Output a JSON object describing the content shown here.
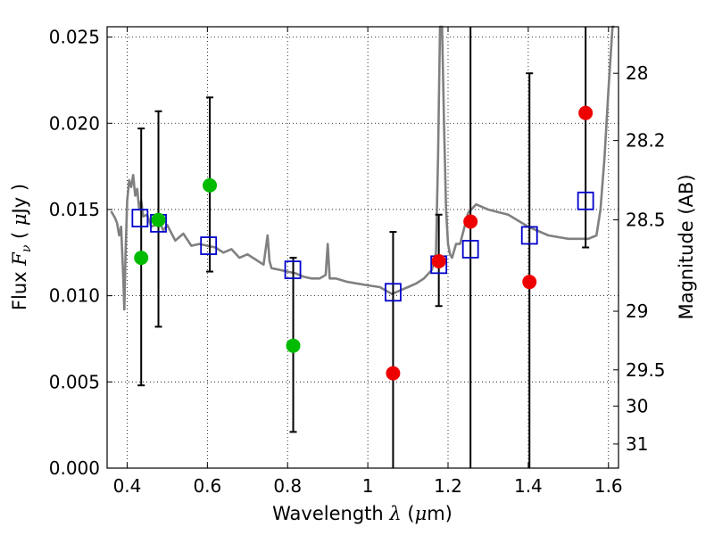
{
  "chart_data": {
    "type": "scatter",
    "xlabel": "Wavelength  λ (μm)",
    "ylabel": "Flux  F_ν  ( μJy )",
    "ylabel_parts": [
      "Flux  ",
      "F",
      "ν",
      "  ( ",
      "μ",
      "Jy )"
    ],
    "xlabel_parts": [
      "Wavelength  ",
      "λ",
      " (",
      "μ",
      "m)"
    ],
    "y2label": "Magnitude (AB)",
    "xlim": [
      0.35,
      1.625
    ],
    "ylim": [
      0.0,
      0.0256
    ],
    "x_ticks": [
      0.4,
      0.6,
      0.8,
      1.0,
      1.2,
      1.4,
      1.6
    ],
    "x_tick_labels": [
      "0.4",
      "0.6",
      "0.8",
      "1",
      "1.2",
      "1.4",
      "1.6"
    ],
    "y_ticks": [
      0.0,
      0.005,
      0.01,
      0.015,
      0.02,
      0.025
    ],
    "y_tick_labels": [
      "0.000",
      "0.005",
      "0.010",
      "0.015",
      "0.020",
      "0.025"
    ],
    "mag_ticks": [
      {
        "label": "28",
        "flux": 0.0229
      },
      {
        "label": "28.2",
        "flux": 0.019
      },
      {
        "label": "28.5",
        "flux": 0.0144
      },
      {
        "label": "29",
        "flux": 0.0091
      },
      {
        "label": "29.5",
        "flux": 0.0057
      },
      {
        "label": "30",
        "flux": 0.0036
      },
      {
        "label": "31",
        "flux": 0.0014
      }
    ],
    "grid": true,
    "colors": {
      "sed": "#808080",
      "green": "#00bb00",
      "red": "#ee0000",
      "model": "#0000cc",
      "errorbar": "#000000"
    },
    "series": [
      {
        "name": "SED model",
        "style": "line",
        "x": [
          0.36,
          0.37,
          0.375,
          0.38,
          0.385,
          0.39,
          0.393,
          0.396,
          0.4,
          0.405,
          0.41,
          0.415,
          0.42,
          0.425,
          0.43,
          0.435,
          0.44,
          0.45,
          0.46,
          0.47,
          0.48,
          0.49,
          0.5,
          0.52,
          0.54,
          0.56,
          0.58,
          0.6,
          0.62,
          0.64,
          0.66,
          0.68,
          0.7,
          0.72,
          0.74,
          0.75,
          0.755,
          0.76,
          0.78,
          0.8,
          0.82,
          0.84,
          0.86,
          0.88,
          0.895,
          0.9,
          0.905,
          0.92,
          0.95,
          1.0,
          1.03,
          1.06,
          1.08,
          1.1,
          1.12,
          1.14,
          1.16,
          1.17,
          1.175,
          1.18,
          1.185,
          1.19,
          1.195,
          1.2,
          1.205,
          1.21,
          1.22,
          1.23,
          1.25,
          1.27,
          1.3,
          1.35,
          1.4,
          1.45,
          1.5,
          1.55,
          1.57,
          1.58,
          1.59,
          1.6,
          1.61,
          1.615
        ],
        "y": [
          0.0149,
          0.0145,
          0.0142,
          0.0135,
          0.014,
          0.0112,
          0.0092,
          0.0125,
          0.0155,
          0.0167,
          0.0163,
          0.017,
          0.0158,
          0.0162,
          0.015,
          0.0155,
          0.0146,
          0.0147,
          0.014,
          0.0141,
          0.0143,
          0.0138,
          0.0141,
          0.0132,
          0.0136,
          0.0129,
          0.013,
          0.0129,
          0.0128,
          0.0125,
          0.0127,
          0.0122,
          0.0124,
          0.0121,
          0.0118,
          0.0135,
          0.012,
          0.0116,
          0.0115,
          0.0114,
          0.0113,
          0.0111,
          0.011,
          0.011,
          0.0112,
          0.013,
          0.011,
          0.011,
          0.0108,
          0.0106,
          0.0105,
          0.0101,
          0.0103,
          0.0105,
          0.0107,
          0.011,
          0.0115,
          0.0125,
          0.018,
          0.026,
          0.026,
          0.02,
          0.015,
          0.013,
          0.0124,
          0.0122,
          0.013,
          0.013,
          0.0148,
          0.0153,
          0.015,
          0.0147,
          0.014,
          0.0135,
          0.0133,
          0.0133,
          0.0135,
          0.015,
          0.018,
          0.022,
          0.026,
          0.026
        ]
      },
      {
        "name": "Observed (green)",
        "style": "marker",
        "x": [
          0.435,
          0.478,
          0.606,
          0.814
        ],
        "y": [
          0.0122,
          0.0144,
          0.0164,
          0.0071
        ],
        "err_low": [
          0.0048,
          0.0082,
          0.0114,
          0.0021
        ],
        "err_high": [
          0.0197,
          0.0207,
          0.0215,
          0.0122
        ]
      },
      {
        "name": "Observed (red)",
        "style": "marker",
        "x": [
          1.063,
          1.177,
          1.256,
          1.403,
          1.543
        ],
        "y": [
          0.0055,
          0.012,
          0.0143,
          0.0108,
          0.0206
        ],
        "err_low": [
          0.0,
          0.0094,
          0.0,
          0.0,
          0.0128
        ],
        "err_high": [
          0.0137,
          0.0147,
          0.0256,
          0.0229,
          0.0256
        ]
      },
      {
        "name": "Model photometry (squares)",
        "style": "square",
        "x": [
          0.432,
          0.478,
          0.603,
          0.813,
          1.063,
          1.177,
          1.256,
          1.403,
          1.543
        ],
        "y": [
          0.0145,
          0.0142,
          0.0129,
          0.0115,
          0.0102,
          0.0118,
          0.0127,
          0.0135,
          0.0155
        ]
      }
    ]
  }
}
